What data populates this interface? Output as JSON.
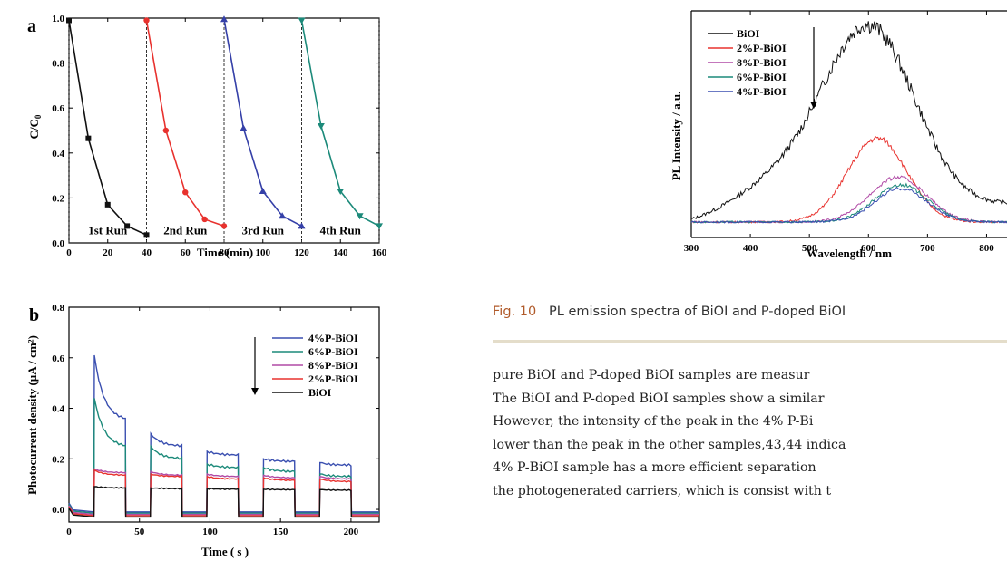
{
  "chart_data": [
    {
      "panel_label": "a",
      "type": "line",
      "xlabel": "Time (min)",
      "ylabel": "C/C0",
      "xlim": [
        0,
        160
      ],
      "ylim": [
        0,
        1.0
      ],
      "x_ticks": [
        0,
        20,
        40,
        60,
        80,
        100,
        120,
        140,
        160
      ],
      "y_ticks": [
        0.0,
        0.2,
        0.4,
        0.6,
        0.8,
        1.0
      ],
      "separators": [
        0,
        40,
        80,
        120,
        160
      ],
      "run_labels": [
        "1st Run",
        "2nd Run",
        "3rd Run",
        "4th Run"
      ],
      "series": [
        {
          "color": "#111111",
          "marker": "square",
          "x": [
            0,
            10,
            20,
            30,
            40
          ],
          "y": [
            0.99,
            0.465,
            0.17,
            0.075,
            0.035
          ]
        },
        {
          "color": "#e8322e",
          "marker": "circle",
          "x": [
            40,
            50,
            60,
            70,
            80
          ],
          "y": [
            0.99,
            0.5,
            0.225,
            0.105,
            0.075
          ]
        },
        {
          "color": "#3540a8",
          "marker": "triangle-up",
          "x": [
            80,
            90,
            100,
            110,
            120
          ],
          "y": [
            0.995,
            0.51,
            0.23,
            0.12,
            0.075
          ]
        },
        {
          "color": "#1c8a7a",
          "marker": "triangle-down",
          "x": [
            120,
            130,
            140,
            150,
            160
          ],
          "y": [
            0.99,
            0.52,
            0.23,
            0.12,
            0.075
          ]
        }
      ]
    },
    {
      "panel_label": "b",
      "type": "line",
      "xlabel": "Time ( s )",
      "ylabel": "Photocurrent density (µA / cm²)",
      "xlim": [
        0,
        220
      ],
      "ylim": [
        -0.05,
        0.8
      ],
      "x_ticks": [
        0,
        50,
        100,
        150,
        200
      ],
      "y_ticks": [
        0.0,
        0.2,
        0.4,
        0.6,
        0.8
      ],
      "light_on": [
        [
          18,
          40
        ],
        [
          58,
          80
        ],
        [
          98,
          120
        ],
        [
          138,
          160
        ],
        [
          178,
          200
        ]
      ],
      "legend": [
        "4%P-BiOI",
        "6%P-BiOI",
        "8%P-BiOI",
        "2%P-BiOI",
        "BiOI"
      ],
      "legend_position": "top-right",
      "series": [
        {
          "name": "4%P-BiOI",
          "color": "#3a4fb0",
          "off": -0.01,
          "on_start": [
            0.61,
            0.3,
            0.23,
            0.2,
            0.185
          ],
          "on_end": [
            0.35,
            0.25,
            0.215,
            0.19,
            0.175
          ]
        },
        {
          "name": "6%P-BiOI",
          "color": "#1c8a7a",
          "off": -0.015,
          "on_start": [
            0.44,
            0.25,
            0.18,
            0.165,
            0.14
          ],
          "on_end": [
            0.245,
            0.2,
            0.165,
            0.15,
            0.13
          ]
        },
        {
          "name": "8%P-BiOI",
          "color": "#b04aa6",
          "off": -0.02,
          "on_start": [
            0.16,
            0.15,
            0.14,
            0.135,
            0.13
          ],
          "on_end": [
            0.145,
            0.135,
            0.13,
            0.125,
            0.12
          ]
        },
        {
          "name": "2%P-BiOI",
          "color": "#e8322e",
          "off": -0.025,
          "on_start": [
            0.155,
            0.14,
            0.13,
            0.125,
            0.12
          ],
          "on_end": [
            0.135,
            0.13,
            0.12,
            0.115,
            0.11
          ]
        },
        {
          "name": "BiOI",
          "color": "#111111",
          "off": -0.03,
          "on_start": [
            0.09,
            0.085,
            0.082,
            0.08,
            0.078
          ],
          "on_end": [
            0.085,
            0.082,
            0.08,
            0.078,
            0.076
          ]
        }
      ]
    },
    {
      "type": "line",
      "xlabel": "Wavelength / nm",
      "ylabel": "PL Intensity / a.u.",
      "xlim": [
        300,
        850
      ],
      "x_ticks": [
        300,
        400,
        500,
        600,
        700,
        800
      ],
      "legend": [
        "BiOI",
        "2%P-BiOI",
        "8%P-BiOI",
        "6%P-BiOI",
        "4%P-BiOI"
      ],
      "legend_position": "top-left",
      "series": [
        {
          "name": "BiOI",
          "color": "#111111",
          "peak_wavelength": 600,
          "relative_peak": 1.0
        },
        {
          "name": "2%P-BiOI",
          "color": "#e8322e",
          "peak_wavelength": 615,
          "relative_peak": 0.45
        },
        {
          "name": "8%P-BiOI",
          "color": "#b04aa6",
          "peak_wavelength": 650,
          "relative_peak": 0.24
        },
        {
          "name": "6%P-BiOI",
          "color": "#1c8a7a",
          "peak_wavelength": 655,
          "relative_peak": 0.2
        },
        {
          "name": "4%P-BiOI",
          "color": "#3a4fb0",
          "peak_wavelength": 655,
          "relative_peak": 0.18
        }
      ]
    }
  ],
  "caption": {
    "fig": "Fig. 10",
    "text": "PL emission spectra of BiOI and P-doped BiOI"
  },
  "body_lines": [
    "pure BiOI and P-doped BiOI samples are measur",
    "The BiOI and P-doped BiOI samples show a similar",
    "However, the intensity of the peak in the 4% P-Bi",
    "lower than the peak in the other samples,43,44 indica",
    "4% P-BiOI sample has a more efficient separation",
    "the photogenerated carriers, which is consist with t"
  ]
}
